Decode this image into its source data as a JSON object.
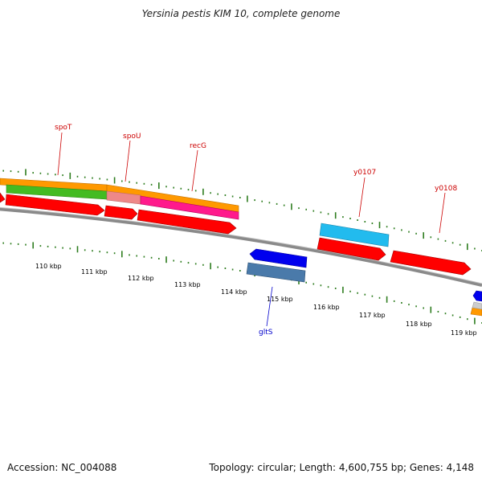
{
  "title": "Yersinia pestis KIM 10, complete genome",
  "footer": {
    "accession": "Accession: NC_004088",
    "summary": "Topology: circular; Length: 4,600,755 bp; Genes: 4,148"
  },
  "colors": {
    "backbone": "#8a8a8a",
    "tick": "#2e7d1f",
    "gene_red": "#ff0000",
    "gene_orange": "#ff9900",
    "gene_green": "#44bb22",
    "gene_pink": "#ff1a8c",
    "gene_salmon": "#ee8888",
    "gene_cyan": "#22bbee",
    "gene_blue": "#0000ee",
    "gene_steel": "#4a7aaa",
    "label_red": "#cc0000",
    "label_blue": "#0000cc"
  },
  "ticks": {
    "labels": [
      "110 kbp",
      "111 kbp",
      "112 kbp",
      "113 kbp",
      "114 kbp",
      "115 kbp",
      "116 kbp",
      "117 kbp",
      "118 kbp",
      "119 kbp"
    ]
  },
  "gene_labels": [
    "spoT",
    "spoU",
    "recG",
    "y0107",
    "y0108",
    "gltS"
  ]
}
